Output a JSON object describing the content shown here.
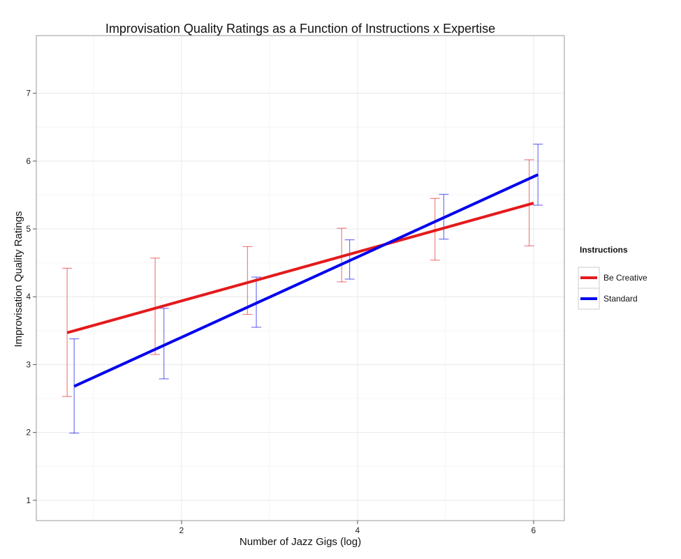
{
  "chart_data": {
    "type": "line",
    "title": "Improvisation Quality Ratings as a Function of Instructions x Expertise",
    "xlabel": "Number of Jazz Gigs (log)",
    "ylabel": "Improvisation Quality Ratings",
    "xlim": [
      0.35,
      6.35
    ],
    "ylim": [
      0.7,
      7.85
    ],
    "x_ticks": [
      2,
      4,
      6
    ],
    "y_ticks": [
      1,
      2,
      3,
      4,
      5,
      6,
      7
    ],
    "grid": true,
    "legend": {
      "title": "Instructions",
      "position": "right"
    },
    "series": [
      {
        "name": "Be Creative",
        "color": "#e41a1c",
        "fit_line": {
          "x": [
            0.7,
            6.0
          ],
          "y": [
            3.47,
            5.38
          ]
        },
        "error_bars": [
          {
            "x": 0.7,
            "low": 2.53,
            "high": 4.42
          },
          {
            "x": 1.7,
            "low": 3.15,
            "high": 4.57
          },
          {
            "x": 2.75,
            "low": 3.74,
            "high": 4.74
          },
          {
            "x": 3.82,
            "low": 4.22,
            "high": 5.01
          },
          {
            "x": 4.88,
            "low": 4.54,
            "high": 5.45
          },
          {
            "x": 5.95,
            "low": 4.75,
            "high": 6.02
          }
        ]
      },
      {
        "name": "Standard",
        "color": "#0000ee",
        "fit_line": {
          "x": [
            0.78,
            6.05
          ],
          "y": [
            2.68,
            5.8
          ]
        },
        "error_bars": [
          {
            "x": 0.78,
            "low": 1.99,
            "high": 3.38
          },
          {
            "x": 1.8,
            "low": 2.79,
            "high": 3.83
          },
          {
            "x": 2.85,
            "low": 3.55,
            "high": 4.29
          },
          {
            "x": 3.91,
            "low": 4.26,
            "high": 4.84
          },
          {
            "x": 4.98,
            "low": 4.85,
            "high": 5.51
          },
          {
            "x": 6.05,
            "low": 5.35,
            "high": 6.25
          }
        ]
      }
    ]
  }
}
